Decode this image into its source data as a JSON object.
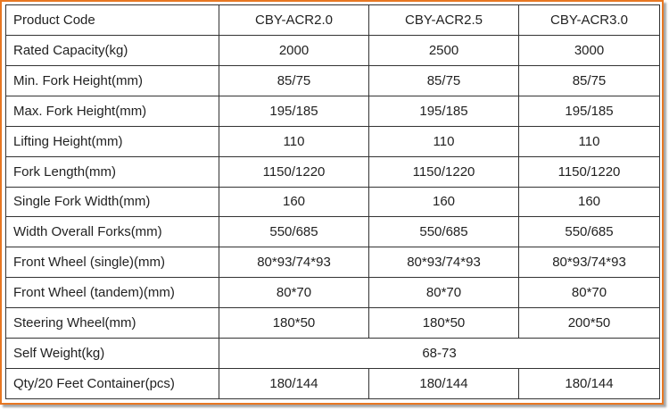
{
  "table": {
    "header": {
      "label": "Product Code",
      "models": [
        "CBY-ACR2.0",
        "CBY-ACR2.5",
        "CBY-ACR3.0"
      ]
    },
    "rows": [
      {
        "label": "Rated Capacity(kg)",
        "values": [
          "2000",
          "2500",
          "3000"
        ]
      },
      {
        "label": "Min. Fork Height(mm)",
        "values": [
          "85/75",
          "85/75",
          "85/75"
        ]
      },
      {
        "label": "Max. Fork Height(mm)",
        "values": [
          "195/185",
          "195/185",
          "195/185"
        ]
      },
      {
        "label": "Lifting Height(mm)",
        "values": [
          "110",
          "110",
          "110"
        ]
      },
      {
        "label": "Fork Length(mm)",
        "values": [
          "1150/1220",
          "1150/1220",
          "1150/1220"
        ]
      },
      {
        "label": "Single Fork Width(mm)",
        "values": [
          "160",
          "160",
          "160"
        ]
      },
      {
        "label": "Width Overall Forks(mm)",
        "values": [
          "550/685",
          "550/685",
          "550/685"
        ]
      },
      {
        "label": "Front Wheel (single)(mm)",
        "values": [
          "80*93/74*93",
          "80*93/74*93",
          "80*93/74*93"
        ]
      },
      {
        "label": "Front Wheel (tandem)(mm)",
        "values": [
          "80*70",
          "80*70",
          "80*70"
        ]
      },
      {
        "label": "Steering Wheel(mm)",
        "values": [
          "180*50",
          "180*50",
          "200*50"
        ]
      }
    ],
    "self_weight": {
      "label": "Self Weight(kg)",
      "value": "68-73"
    },
    "container": {
      "label": "Qty/20 Feet Container(pcs)",
      "values": [
        "180/144",
        "180/144",
        "180/144"
      ]
    }
  },
  "colors": {
    "border_accent": "#e87722",
    "grid": "#333333",
    "text": "#222222"
  }
}
